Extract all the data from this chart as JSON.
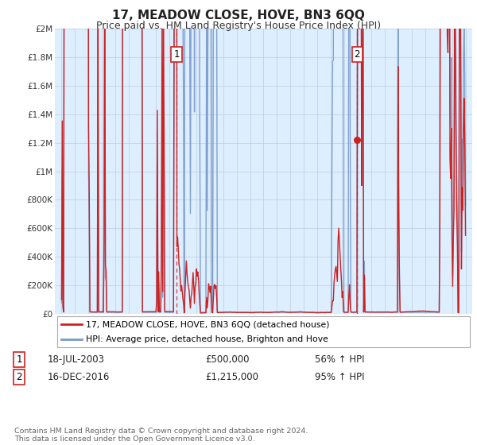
{
  "title": "17, MEADOW CLOSE, HOVE, BN3 6QQ",
  "subtitle": "Price paid vs. HM Land Registry's House Price Index (HPI)",
  "title_fontsize": 11,
  "subtitle_fontsize": 9,
  "background_color": "#ffffff",
  "plot_bg_color": "#ddeeff",
  "grid_color": "#ccddee",
  "line1_color": "#cc2222",
  "line2_color": "#7799cc",
  "sale1_date_x": 2003.54,
  "sale1_price": 500000,
  "sale2_date_x": 2016.96,
  "sale2_price": 1215000,
  "legend_line1": "17, MEADOW CLOSE, HOVE, BN3 6QQ (detached house)",
  "legend_line2": "HPI: Average price, detached house, Brighton and Hove",
  "footnote": "Contains HM Land Registry data © Crown copyright and database right 2024.\nThis data is licensed under the Open Government Licence v3.0.",
  "ylim": [
    0,
    2000000
  ],
  "yticks": [
    0,
    200000,
    400000,
    600000,
    800000,
    1000000,
    1200000,
    1400000,
    1600000,
    1800000,
    2000000
  ],
  "ytick_labels": [
    "£0",
    "£200K",
    "£400K",
    "£600K",
    "£800K",
    "£1M",
    "£1.2M",
    "£1.4M",
    "£1.6M",
    "£1.8M",
    "£2M"
  ],
  "xlim": [
    1994.5,
    2025.5
  ],
  "xticks": [
    1995,
    1996,
    1997,
    1998,
    1999,
    2000,
    2001,
    2002,
    2003,
    2004,
    2005,
    2006,
    2007,
    2008,
    2009,
    2010,
    2011,
    2012,
    2013,
    2014,
    2015,
    2016,
    2017,
    2018,
    2019,
    2020,
    2021,
    2022,
    2023,
    2024,
    2025
  ],
  "sale1_label_date": "18-JUL-2003",
  "sale1_label_price": "£500,000",
  "sale1_label_hpi": "56% ↑ HPI",
  "sale2_label_date": "16-DEC-2016",
  "sale2_label_price": "£1,215,000",
  "sale2_label_hpi": "95% ↑ HPI"
}
